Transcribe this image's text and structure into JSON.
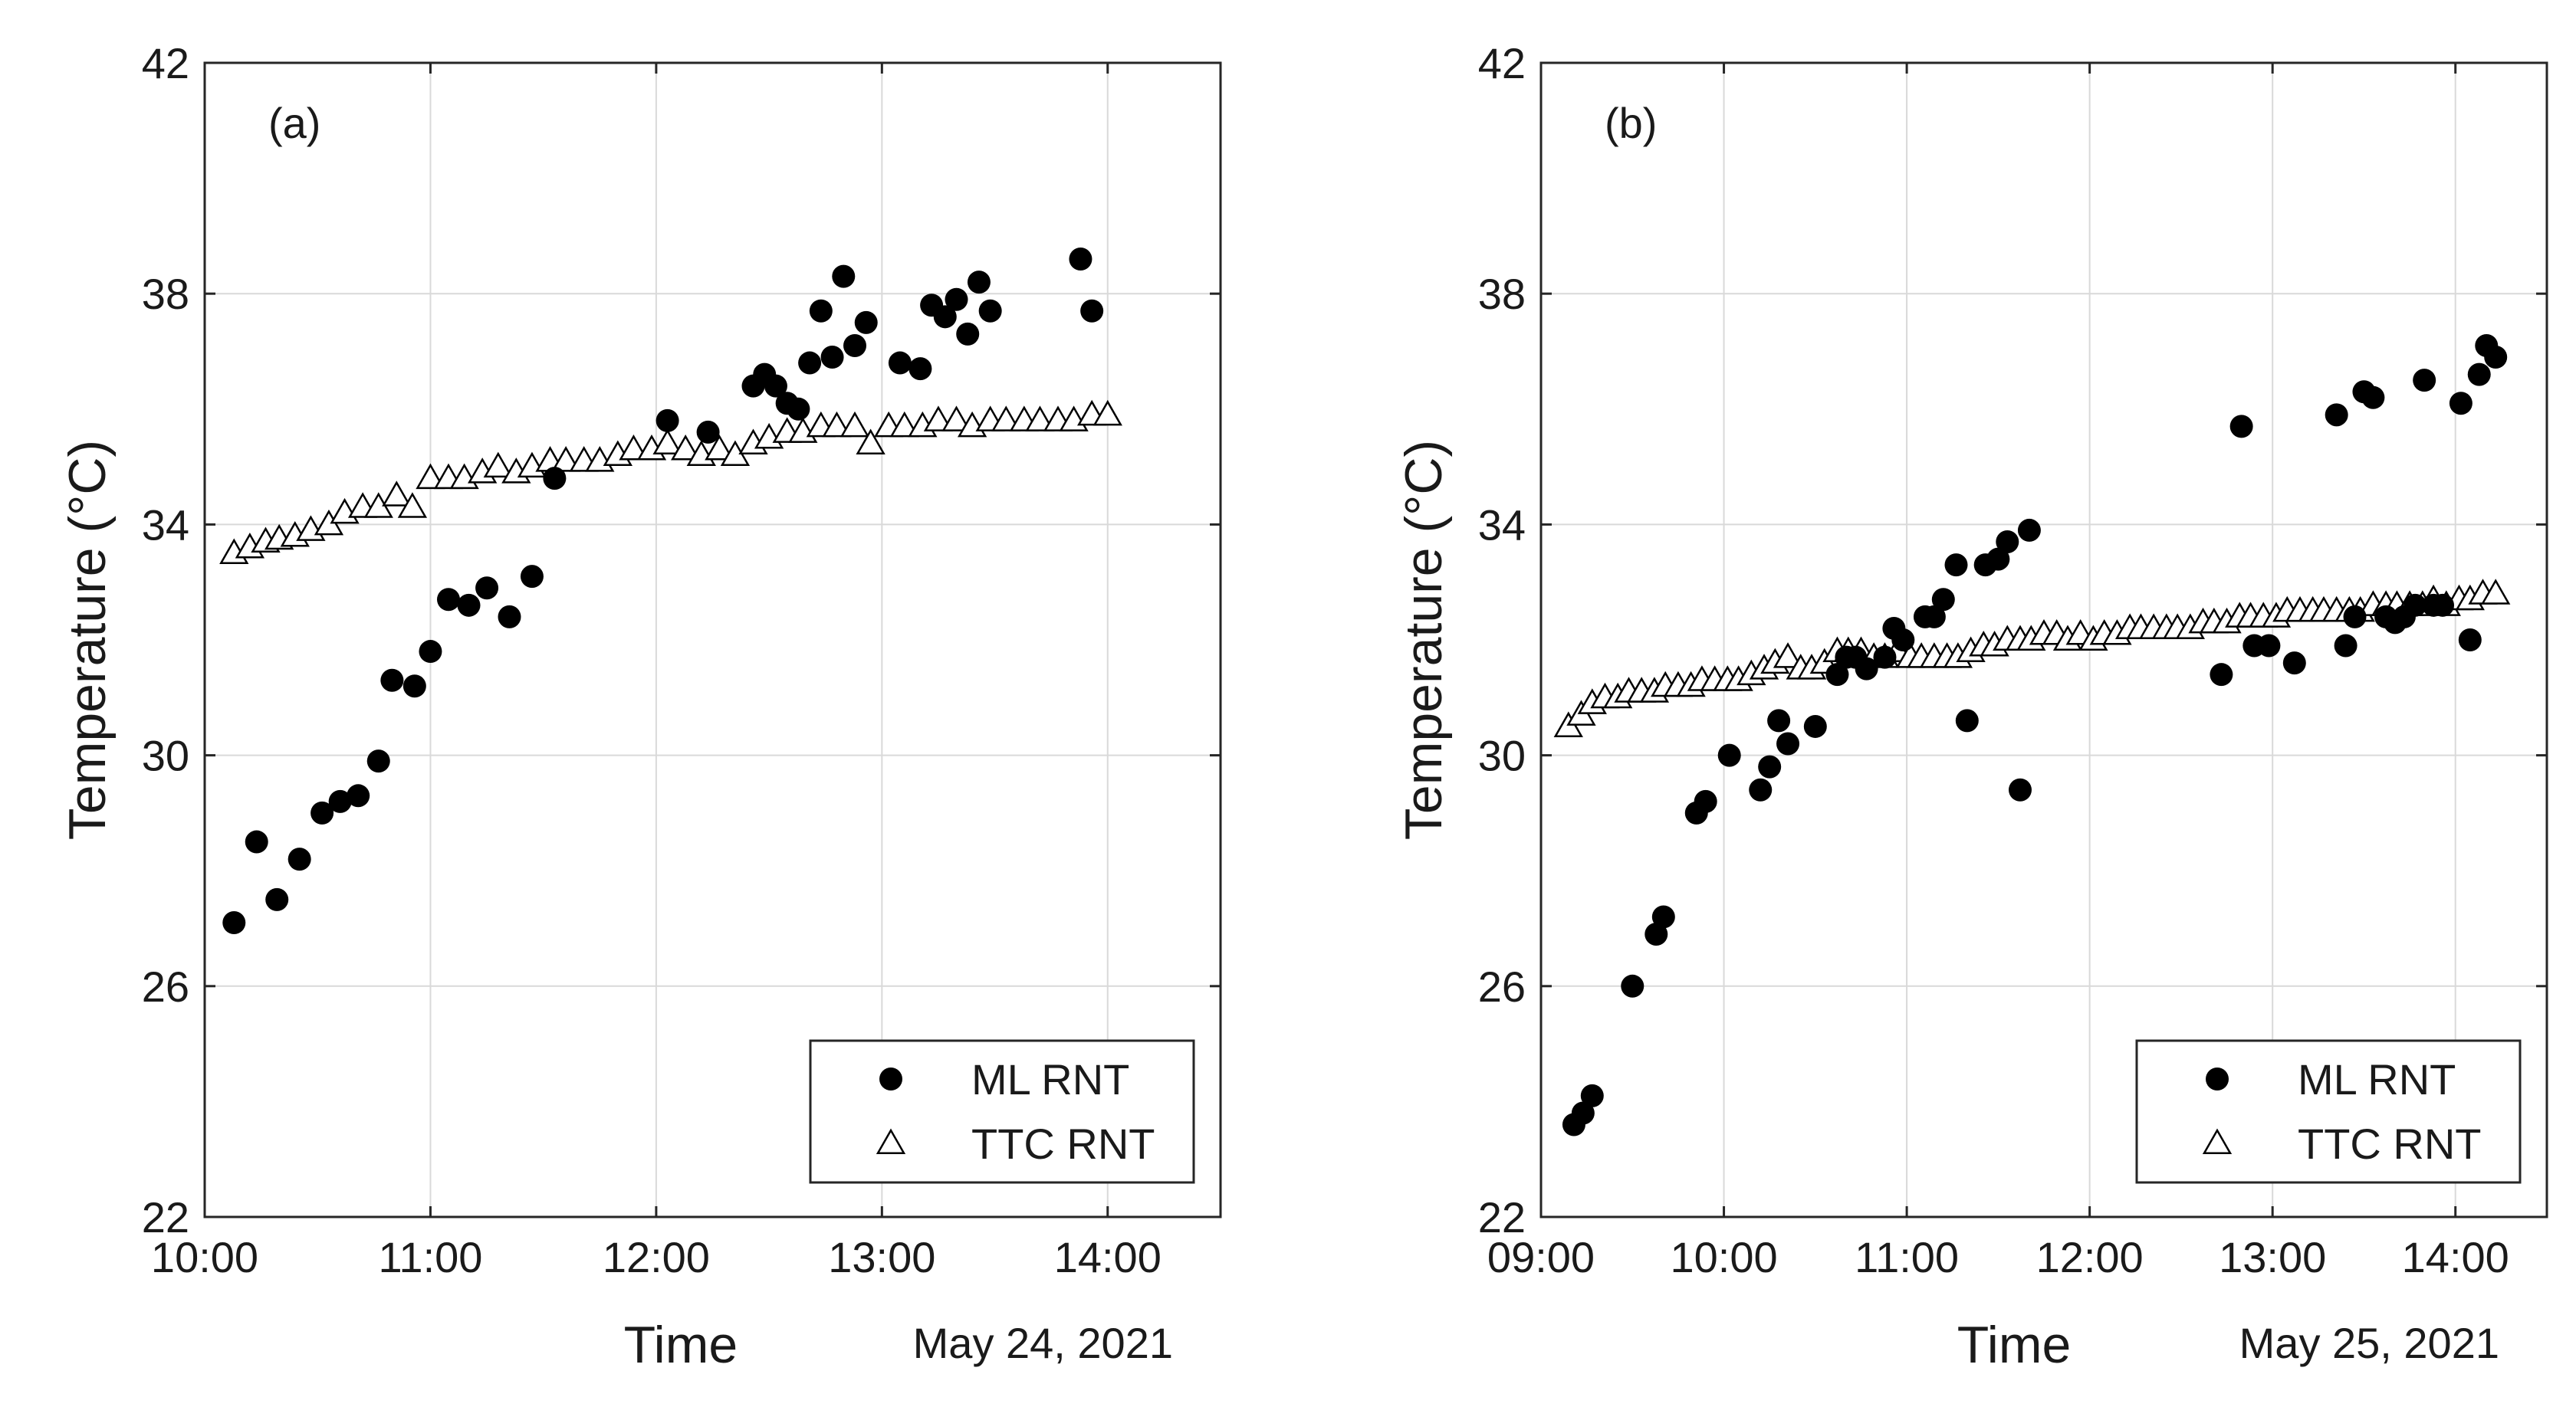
{
  "chart_data": [
    {
      "type": "scatter",
      "panel_label": "(a)",
      "xlabel": "Time",
      "date_label": "May 24, 2021",
      "ylabel": "Temperature (°C)",
      "x_unit": "hours of day",
      "xlim": [
        10.0,
        14.5
      ],
      "ylim": [
        22,
        42
      ],
      "xticks": [
        10,
        11,
        12,
        13,
        14
      ],
      "xtick_labels": [
        "10:00",
        "11:00",
        "12:00",
        "13:00",
        "14:00"
      ],
      "yticks": [
        22,
        26,
        30,
        34,
        38,
        42
      ],
      "ytick_labels": [
        "22",
        "26",
        "30",
        "34",
        "38",
        "42"
      ],
      "grid": true,
      "legend_position": "bottom-right",
      "series": [
        {
          "name": "ML RNT",
          "marker": "filled-circle",
          "color": "#000000",
          "x": [
            10.13,
            10.23,
            10.32,
            10.42,
            10.52,
            10.6,
            10.68,
            10.77,
            10.83,
            10.93,
            11.0,
            11.08,
            11.17,
            11.25,
            11.35,
            11.45,
            11.55,
            12.05,
            12.23,
            12.43,
            12.48,
            12.53,
            12.58,
            12.63,
            12.68,
            12.73,
            12.78,
            12.83,
            12.88,
            12.93,
            13.08,
            13.17,
            13.22,
            13.28,
            13.33,
            13.38,
            13.43,
            13.48,
            13.88,
            13.93
          ],
          "y": [
            27.1,
            28.5,
            27.5,
            28.2,
            29.0,
            29.2,
            29.3,
            29.9,
            31.3,
            31.2,
            31.8,
            32.7,
            32.6,
            32.9,
            32.4,
            33.1,
            34.8,
            35.8,
            35.6,
            36.4,
            36.6,
            36.4,
            36.1,
            36.0,
            36.8,
            37.7,
            36.9,
            38.3,
            37.1,
            37.5,
            36.8,
            36.7,
            37.8,
            37.6,
            37.9,
            37.3,
            38.2,
            37.7,
            38.6,
            37.7
          ]
        },
        {
          "name": "TTC RNT",
          "marker": "open-triangle",
          "color": "#000000",
          "x": [
            10.13,
            10.2,
            10.27,
            10.33,
            10.4,
            10.47,
            10.55,
            10.62,
            10.7,
            10.77,
            10.85,
            10.92,
            11.0,
            11.08,
            11.15,
            11.23,
            11.3,
            11.38,
            11.45,
            11.53,
            11.6,
            11.68,
            11.75,
            11.83,
            11.9,
            11.98,
            12.05,
            12.13,
            12.2,
            12.28,
            12.35,
            12.43,
            12.5,
            12.58,
            12.65,
            12.73,
            12.8,
            12.88,
            12.95,
            13.03,
            13.1,
            13.18,
            13.25,
            13.33,
            13.4,
            13.48,
            13.55,
            13.63,
            13.7,
            13.78,
            13.85,
            13.93,
            14.0
          ],
          "y": [
            33.5,
            33.6,
            33.7,
            33.75,
            33.8,
            33.9,
            34.0,
            34.2,
            34.3,
            34.3,
            34.5,
            34.3,
            34.8,
            34.8,
            34.8,
            34.9,
            35.0,
            34.9,
            35.0,
            35.1,
            35.1,
            35.1,
            35.1,
            35.2,
            35.3,
            35.3,
            35.4,
            35.3,
            35.2,
            35.3,
            35.2,
            35.4,
            35.5,
            35.6,
            35.6,
            35.7,
            35.7,
            35.7,
            35.4,
            35.7,
            35.7,
            35.7,
            35.8,
            35.8,
            35.7,
            35.8,
            35.8,
            35.8,
            35.8,
            35.8,
            35.8,
            35.9,
            35.9
          ]
        }
      ]
    },
    {
      "type": "scatter",
      "panel_label": "(b)",
      "xlabel": "Time",
      "date_label": "May 25, 2021",
      "ylabel": "Temperature (°C)",
      "x_unit": "hours of day",
      "xlim": [
        9.0,
        14.5
      ],
      "ylim": [
        22,
        42
      ],
      "xticks": [
        9,
        10,
        11,
        12,
        13,
        14
      ],
      "xtick_labels": [
        "09:00",
        "10:00",
        "11:00",
        "12:00",
        "13:00",
        "14:00"
      ],
      "yticks": [
        22,
        26,
        30,
        34,
        38,
        42
      ],
      "ytick_labels": [
        "22",
        "26",
        "30",
        "34",
        "38",
        "42"
      ],
      "grid": true,
      "legend_position": "bottom-right",
      "series": [
        {
          "name": "ML RNT",
          "marker": "filled-circle",
          "color": "#000000",
          "x": [
            9.18,
            9.23,
            9.28,
            9.5,
            9.63,
            9.67,
            9.85,
            9.9,
            10.03,
            10.2,
            10.25,
            10.3,
            10.35,
            10.5,
            10.62,
            10.67,
            10.72,
            10.78,
            10.88,
            10.93,
            10.98,
            11.1,
            11.15,
            11.2,
            11.27,
            11.33,
            11.43,
            11.5,
            11.55,
            11.62,
            11.67,
            12.72,
            12.83,
            12.9,
            12.98,
            13.12,
            13.35,
            13.4,
            13.45,
            13.5,
            13.55,
            13.62,
            13.67,
            13.72,
            13.78,
            13.83,
            13.88,
            13.93,
            14.03,
            14.08,
            14.13,
            14.17,
            14.22
          ],
          "y": [
            23.6,
            23.8,
            24.1,
            26.0,
            26.9,
            27.2,
            29.0,
            29.2,
            30.0,
            29.4,
            29.8,
            30.6,
            30.2,
            30.5,
            31.4,
            31.7,
            31.7,
            31.5,
            31.7,
            32.2,
            32.0,
            32.4,
            32.4,
            32.7,
            33.3,
            30.6,
            33.3,
            33.4,
            33.7,
            29.4,
            33.9,
            31.4,
            35.7,
            31.9,
            31.9,
            31.6,
            35.9,
            31.9,
            32.4,
            36.3,
            36.2,
            32.4,
            32.3,
            32.4,
            32.6,
            36.5,
            32.6,
            32.6,
            36.1,
            32.0,
            36.6,
            37.1,
            36.9
          ]
        },
        {
          "name": "TTC RNT",
          "marker": "open-triangle",
          "color": "#000000",
          "x": [
            9.15,
            9.22,
            9.28,
            9.35,
            9.42,
            9.48,
            9.55,
            9.62,
            9.68,
            9.75,
            9.82,
            9.88,
            9.95,
            10.02,
            10.08,
            10.15,
            10.22,
            10.28,
            10.35,
            10.42,
            10.48,
            10.55,
            10.62,
            10.68,
            10.75,
            10.82,
            10.88,
            10.95,
            11.02,
            11.08,
            11.15,
            11.22,
            11.28,
            11.35,
            11.42,
            11.48,
            11.55,
            11.62,
            11.68,
            11.75,
            11.82,
            11.88,
            11.95,
            12.02,
            12.08,
            12.15,
            12.22,
            12.28,
            12.35,
            12.42,
            12.48,
            12.55,
            12.62,
            12.68,
            12.75,
            12.82,
            12.88,
            12.95,
            13.02,
            13.08,
            13.15,
            13.22,
            13.28,
            13.35,
            13.42,
            13.48,
            13.55,
            13.62,
            13.68,
            13.75,
            13.82,
            13.88,
            13.95,
            14.02,
            14.08,
            14.15,
            14.22
          ],
          "y": [
            30.5,
            30.7,
            30.9,
            31.0,
            31.0,
            31.1,
            31.1,
            31.1,
            31.2,
            31.2,
            31.2,
            31.3,
            31.3,
            31.3,
            31.3,
            31.4,
            31.5,
            31.6,
            31.7,
            31.5,
            31.5,
            31.6,
            31.8,
            31.8,
            31.8,
            31.7,
            31.7,
            31.8,
            31.7,
            31.7,
            31.7,
            31.7,
            31.7,
            31.8,
            31.9,
            31.9,
            32.0,
            32.0,
            32.0,
            32.1,
            32.1,
            32.0,
            32.1,
            32.0,
            32.1,
            32.1,
            32.2,
            32.2,
            32.2,
            32.2,
            32.2,
            32.2,
            32.3,
            32.3,
            32.3,
            32.4,
            32.4,
            32.4,
            32.4,
            32.5,
            32.5,
            32.5,
            32.5,
            32.5,
            32.5,
            32.5,
            32.6,
            32.6,
            32.6,
            32.6,
            32.6,
            32.7,
            32.6,
            32.7,
            32.7,
            32.8,
            32.8
          ]
        }
      ]
    }
  ]
}
